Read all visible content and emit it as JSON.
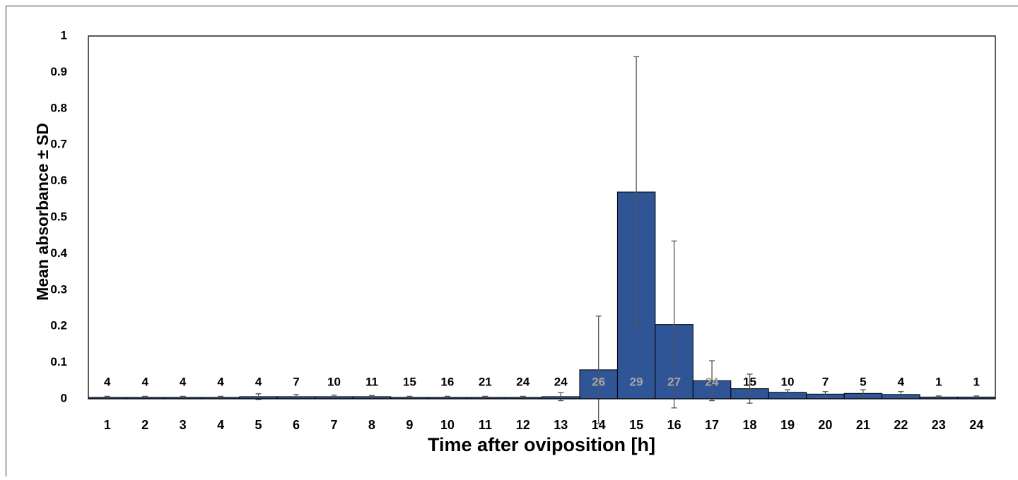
{
  "chart_data": {
    "type": "bar",
    "y_label": "Mean absorbance ± SD",
    "x_label": "Time after oviposition [h]",
    "categories": [
      "1",
      "2",
      "3",
      "4",
      "5",
      "6",
      "7",
      "8",
      "9",
      "10",
      "11",
      "12",
      "13",
      "14",
      "15",
      "16",
      "17",
      "18",
      "19",
      "20",
      "21",
      "22",
      "23",
      "24"
    ],
    "values": [
      0.004,
      0.004,
      0.004,
      0.004,
      0.006,
      0.006,
      0.006,
      0.006,
      0.004,
      0.004,
      0.004,
      0.004,
      0.006,
      0.08,
      0.57,
      0.205,
      0.05,
      0.028,
      0.018,
      0.013,
      0.015,
      0.012,
      0.005,
      0.005
    ],
    "errors": [
      0.003,
      0.003,
      0.003,
      0.003,
      0.008,
      0.006,
      0.004,
      0.003,
      0.003,
      0.003,
      0.003,
      0.003,
      0.011,
      0.148,
      0.373,
      0.23,
      0.055,
      0.04,
      0.007,
      0.007,
      0.01,
      0.008,
      0.003,
      0.003
    ],
    "n": [
      4,
      4,
      4,
      4,
      4,
      7,
      10,
      11,
      15,
      16,
      21,
      24,
      24,
      26,
      29,
      27,
      24,
      15,
      10,
      7,
      5,
      4,
      1,
      1
    ],
    "color": "#2f5597",
    "ylim": [
      0,
      1
    ],
    "yticks": [
      0,
      0.1,
      0.2,
      0.3,
      0.4,
      0.5,
      0.6,
      0.7,
      0.8,
      0.9,
      1
    ]
  }
}
